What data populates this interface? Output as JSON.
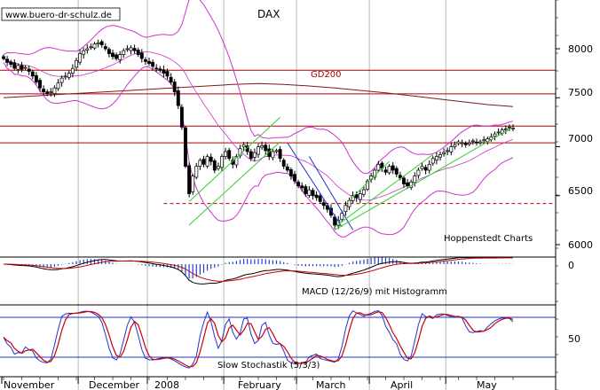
{
  "chart_data": [
    {
      "type": "candlestick",
      "title": "DAX",
      "watermark": "www.buero-dr-schulz.de",
      "source_label": "Hoppenstedt Charts",
      "y_ticks": [
        6000,
        6500,
        7000,
        7500,
        8000
      ],
      "ylim": [
        5850,
        8350
      ],
      "x_month_labels": [
        "November",
        "December",
        "2008",
        "February",
        "March",
        "April",
        "May"
      ],
      "x_month_start_index": [
        0,
        21,
        40,
        61,
        81,
        101,
        122
      ],
      "x_range_bars": [
        0,
        140
      ],
      "horizontal_levels": [
        {
          "value": 7780,
          "color": "#b00000",
          "style": "solid"
        },
        {
          "value": 7540,
          "color": "#b00000",
          "style": "solid"
        },
        {
          "value": 7210,
          "color": "#b00000",
          "style": "solid"
        },
        {
          "value": 7040,
          "color": "#b00000",
          "style": "solid"
        },
        {
          "value": 6420,
          "color": "#b00000",
          "style": "dashed"
        }
      ],
      "gd200_label": "GD200",
      "gd200": [
        7500,
        7515,
        7530,
        7545,
        7560,
        7575,
        7590,
        7605,
        7620,
        7635,
        7645,
        7635,
        7620,
        7600,
        7575,
        7550,
        7520,
        7490,
        7460,
        7430,
        7410
      ],
      "close": [
        7900,
        7860,
        7840,
        7800,
        7830,
        7790,
        7810,
        7770,
        7720,
        7660,
        7600,
        7560,
        7540,
        7560,
        7600,
        7650,
        7700,
        7720,
        7750,
        7800,
        7880,
        7950,
        7980,
        8000,
        8020,
        8050,
        8060,
        8040,
        8000,
        7950,
        7920,
        7900,
        7940,
        7980,
        8000,
        8010,
        7980,
        7940,
        7900,
        7870,
        7850,
        7820,
        7800,
        7780,
        7750,
        7720,
        7660,
        7560,
        7420,
        7200,
        6800,
        6520,
        6700,
        6800,
        6860,
        6820,
        6900,
        6850,
        6760,
        6800,
        6900,
        6950,
        6880,
        6820,
        6900,
        6980,
        7020,
        6950,
        6880,
        6940,
        7000,
        7010,
        6960,
        6900,
        6950,
        6960,
        6880,
        6800,
        6760,
        6700,
        6650,
        6600,
        6580,
        6520,
        6560,
        6500,
        6480,
        6440,
        6400,
        6360,
        6300,
        6200,
        6250,
        6320,
        6400,
        6450,
        6500,
        6480,
        6520,
        6560,
        6650,
        6700,
        6760,
        6820,
        6780,
        6740,
        6800,
        6760,
        6720,
        6680,
        6620,
        6600,
        6640,
        6700,
        6760,
        6800,
        6760,
        6820,
        6880,
        6900,
        6920,
        6940,
        6960,
        7000,
        7020,
        7050,
        7040,
        7020,
        7040,
        7060,
        7040,
        7050,
        7070,
        7080,
        7100,
        7130,
        7150,
        7170,
        7180,
        7200,
        7190
      ]
    },
    {
      "type": "line",
      "title": "MACD (12/26/9) mit Histogramm",
      "zero_label": "0"
    },
    {
      "type": "line",
      "title": "Slow Stochastik (5/3/3)",
      "y_tick": "50",
      "levels": [
        80,
        20
      ]
    }
  ]
}
